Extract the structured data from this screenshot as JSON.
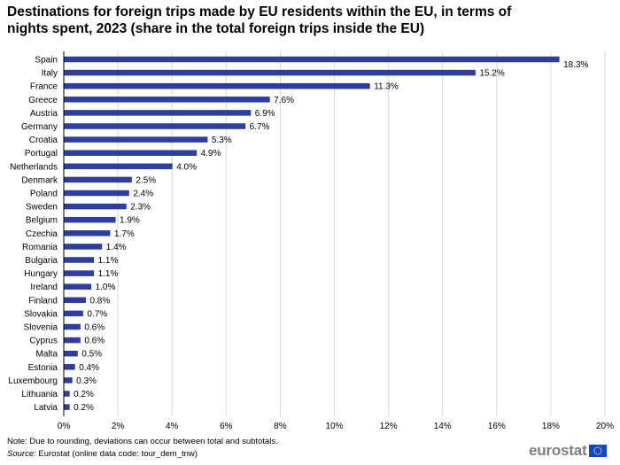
{
  "title": "Destinations for foreign trips made by EU residents within the EU, in terms of nights spent, 2023 (share in the total foreign trips inside the EU)",
  "footnote": "Note: Due to rounding,  deviations can occur between total and subtotals.",
  "source_label": "Source:",
  "source_text": " Eurostat (online data code: tour_dem_tnw)",
  "logo": {
    "text": "eurostat",
    "flag_icon": "eu-flag-icon"
  },
  "colors": {
    "bar": "#2e3e9e",
    "grid": "#d9d9d9"
  },
  "chart_data": {
    "type": "bar",
    "orientation": "horizontal",
    "categories": [
      "Spain",
      "Italy",
      "France",
      "Greece",
      "Austria",
      "Germany",
      "Croatia",
      "Portugal",
      "Netherlands",
      "Denmark",
      "Poland",
      "Sweden",
      "Belgium",
      "Czechia",
      "Romania",
      "Bulgaria",
      "Hungary",
      "Ireland",
      "Finland",
      "Slovakia",
      "Slovenia",
      "Cyprus",
      "Malta",
      "Estonia",
      "Luxembourg",
      "Lithuania",
      "Latvia"
    ],
    "values": [
      18.3,
      15.2,
      11.3,
      7.6,
      6.9,
      6.7,
      5.3,
      4.9,
      4.0,
      2.5,
      2.4,
      2.3,
      1.9,
      1.7,
      1.4,
      1.1,
      1.1,
      1.0,
      0.8,
      0.7,
      0.6,
      0.6,
      0.5,
      0.4,
      0.3,
      0.2,
      0.2
    ],
    "value_labels": [
      "18.3%",
      "15.2%",
      "11.3%",
      "7.6%",
      "6.9%",
      "6.7%",
      "5.3%",
      "4.9%",
      "4.0%",
      "2.5%",
      "2.4%",
      "2.3%",
      "1.9%",
      "1.7%",
      "1.4%",
      "1.1%",
      "1.1%",
      "1.0%",
      "0.8%",
      "0.7%",
      "0.6%",
      "0.6%",
      "0.5%",
      "0.4%",
      "0.3%",
      "0.2%",
      "0.2%"
    ],
    "xlim": [
      0,
      20
    ],
    "xticks": [
      "0%",
      "2%",
      "4%",
      "6%",
      "8%",
      "10%",
      "12%",
      "14%",
      "16%",
      "18%",
      "20%"
    ],
    "grid": true,
    "legend": "none"
  }
}
